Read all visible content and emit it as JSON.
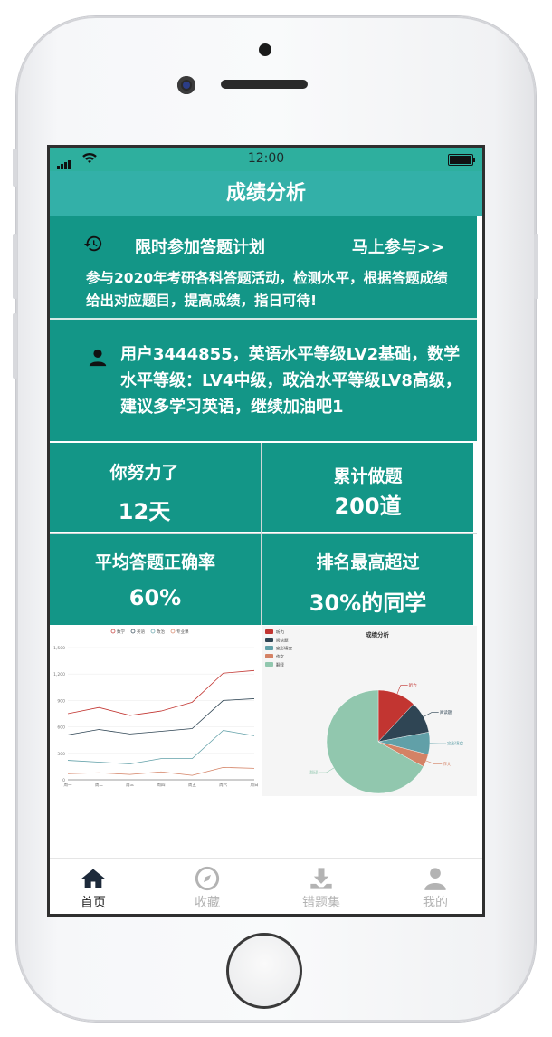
{
  "status_bar": {
    "time": "12:00"
  },
  "header": {
    "title": "成绩分析"
  },
  "promo": {
    "title": "限时参加答题计划",
    "join_label": "马上参与>>",
    "description": "参与2020年考研各科答题活动，检测水平，根据答题成绩给出对应题目，提高成绩，指日可待!"
  },
  "user_info": {
    "text": "用户3444855，英语水平等级LV2基础，数学水平等级：LV4中级，政治水平等级LV8高级，建议多学习英语，继续加油吧1"
  },
  "stats": [
    {
      "label": "你努力了",
      "value": "12天"
    },
    {
      "label": "累计做题",
      "value": "200道"
    },
    {
      "label": "平均答题正确率",
      "value": "60%"
    },
    {
      "label": "排名最高超过",
      "value": "30%的同学"
    }
  ],
  "chart_data": [
    {
      "type": "line",
      "legend": [
        "数学",
        "英语",
        "政治",
        "专业课"
      ],
      "legend_position": "top",
      "categories": [
        "周一",
        "周二",
        "周三",
        "周四",
        "周五",
        "周六",
        "周日"
      ],
      "y_ticks": [
        "0",
        "300",
        "600",
        "900",
        "1,200",
        "1,500"
      ],
      "ylim": [
        0,
        1500
      ],
      "grid": true,
      "series": [
        {
          "name": "数学",
          "color": "#c23531",
          "values": [
            750,
            820,
            730,
            780,
            880,
            1210,
            1240
          ]
        },
        {
          "name": "英语",
          "color": "#2f4554",
          "values": [
            510,
            570,
            520,
            550,
            580,
            900,
            920
          ]
        },
        {
          "name": "政治",
          "color": "#61a0a8",
          "values": [
            220,
            200,
            180,
            240,
            240,
            560,
            500
          ]
        },
        {
          "name": "专业课",
          "color": "#d48265",
          "values": [
            70,
            80,
            60,
            90,
            50,
            140,
            130
          ]
        }
      ]
    },
    {
      "type": "pie",
      "title": "成绩分析",
      "legend": [
        "听力",
        "阅读题",
        "完形填空",
        "作文",
        "翻译"
      ],
      "legend_position": "top-left",
      "slices": [
        {
          "name": "听力",
          "value": 12,
          "color": "#c23531"
        },
        {
          "name": "阅读题",
          "value": 10,
          "color": "#2f4554"
        },
        {
          "name": "完形填空",
          "value": 7,
          "color": "#61a0a8"
        },
        {
          "name": "作文",
          "value": 4,
          "color": "#d48265"
        },
        {
          "name": "翻译",
          "value": 67,
          "color": "#91c7ae"
        }
      ]
    }
  ],
  "tabbar": {
    "items": [
      {
        "label": "首页",
        "icon": "home-icon",
        "active": true
      },
      {
        "label": "收藏",
        "icon": "compass-icon",
        "active": false
      },
      {
        "label": "错题集",
        "icon": "download-icon",
        "active": false
      },
      {
        "label": "我的",
        "icon": "user-icon",
        "active": false
      }
    ]
  }
}
